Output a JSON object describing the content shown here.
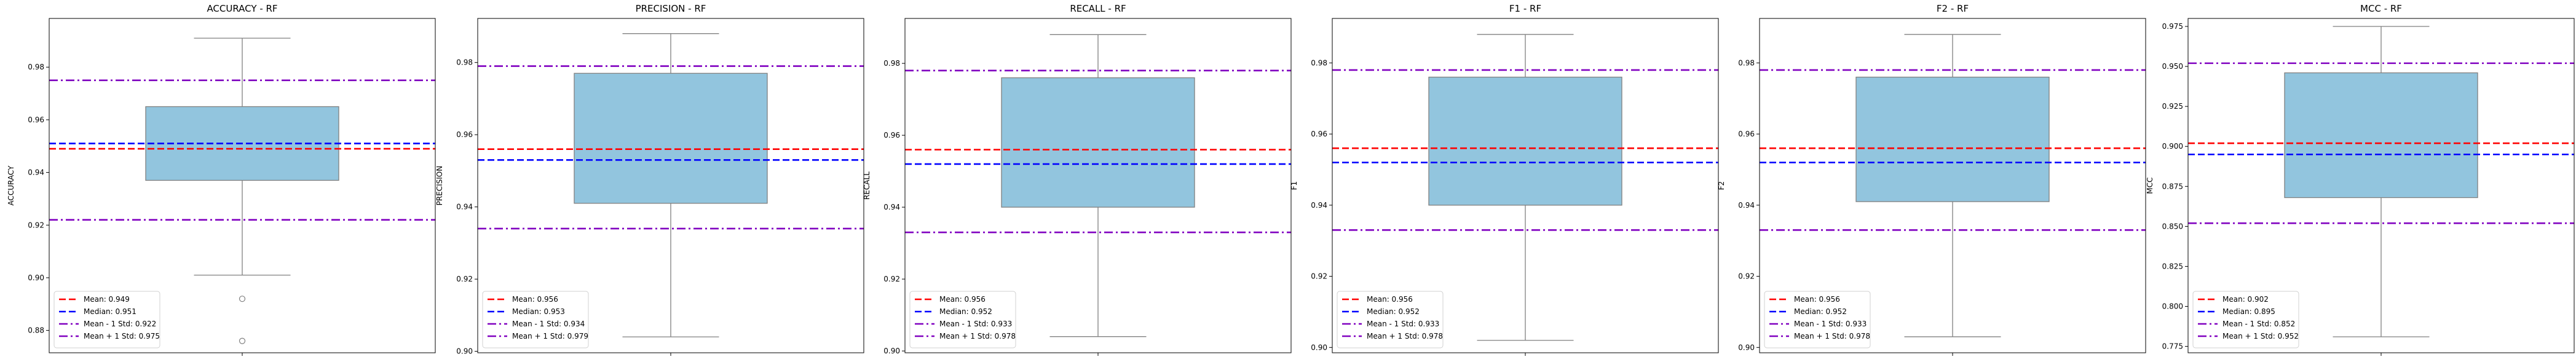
{
  "figure": {
    "background": "#ffffff"
  },
  "styles": {
    "box_fill": "#92c5de",
    "box_edge": "#808080",
    "mean_color": "#ff0000",
    "median_color": "#0000ff",
    "std_color": "#8000c0",
    "outlier_edge": "#808080"
  },
  "chart_data": [
    {
      "type": "box",
      "title": "ACCURACY - RF",
      "ylabel": "ACCURACY",
      "ylim": [
        0.8715,
        0.9985
      ],
      "yticks": [
        0.88,
        0.9,
        0.92,
        0.94,
        0.96,
        0.98
      ],
      "ytick_labels": [
        "0.88",
        "0.90",
        "0.92",
        "0.94",
        "0.96",
        "0.98"
      ],
      "box": {
        "q1": 0.937,
        "q3": 0.965,
        "whisker_low": 0.901,
        "whisker_high": 0.991,
        "outliers": [
          0.892,
          0.876
        ]
      },
      "mean": 0.949,
      "median": 0.951,
      "mean_minus_std": 0.922,
      "mean_plus_std": 0.975,
      "legend": [
        "Mean: 0.949",
        "Median: 0.951",
        "Mean - 1 Std: 0.922",
        "Mean + 1 Std: 0.975"
      ]
    },
    {
      "type": "box",
      "title": "PRECISION - RF",
      "ylabel": "PRECISION",
      "ylim": [
        0.8996,
        0.9922
      ],
      "yticks": [
        0.9,
        0.92,
        0.94,
        0.96,
        0.98
      ],
      "ytick_labels": [
        "0.90",
        "0.92",
        "0.94",
        "0.96",
        "0.98"
      ],
      "box": {
        "q1": 0.941,
        "q3": 0.977,
        "whisker_low": 0.904,
        "whisker_high": 0.988,
        "outliers": []
      },
      "mean": 0.956,
      "median": 0.953,
      "mean_minus_std": 0.934,
      "mean_plus_std": 0.979,
      "legend": [
        "Mean: 0.956",
        "Median: 0.953",
        "Mean - 1 Std: 0.934",
        "Mean + 1 Std: 0.979"
      ]
    },
    {
      "type": "box",
      "title": "RECALL - RF",
      "ylabel": "RECALL",
      "ylim": [
        0.8995,
        0.9925
      ],
      "yticks": [
        0.9,
        0.92,
        0.94,
        0.96,
        0.98
      ],
      "ytick_labels": [
        "0.90",
        "0.92",
        "0.94",
        "0.96",
        "0.98"
      ],
      "box": {
        "q1": 0.94,
        "q3": 0.976,
        "whisker_low": 0.904,
        "whisker_high": 0.988,
        "outliers": []
      },
      "mean": 0.956,
      "median": 0.952,
      "mean_minus_std": 0.933,
      "mean_plus_std": 0.978,
      "legend": [
        "Mean: 0.956",
        "Median: 0.952",
        "Mean - 1 Std: 0.933",
        "Mean + 1 Std: 0.978"
      ]
    },
    {
      "type": "box",
      "title": "F1 - RF",
      "ylabel": "F1",
      "ylim": [
        0.8985,
        0.9925
      ],
      "yticks": [
        0.9,
        0.92,
        0.94,
        0.96,
        0.98
      ],
      "ytick_labels": [
        "0.90",
        "0.92",
        "0.94",
        "0.96",
        "0.98"
      ],
      "box": {
        "q1": 0.94,
        "q3": 0.976,
        "whisker_low": 0.902,
        "whisker_high": 0.988,
        "outliers": []
      },
      "mean": 0.956,
      "median": 0.952,
      "mean_minus_std": 0.933,
      "mean_plus_std": 0.978,
      "legend": [
        "Mean: 0.956",
        "Median: 0.952",
        "Mean - 1 Std: 0.933",
        "Mean + 1 Std: 0.978"
      ]
    },
    {
      "type": "box",
      "title": "F2 - RF",
      "ylabel": "F2",
      "ylim": [
        0.8985,
        0.9925
      ],
      "yticks": [
        0.9,
        0.92,
        0.94,
        0.96,
        0.98
      ],
      "ytick_labels": [
        "0.90",
        "0.92",
        "0.94",
        "0.96",
        "0.98"
      ],
      "box": {
        "q1": 0.941,
        "q3": 0.976,
        "whisker_low": 0.903,
        "whisker_high": 0.988,
        "outliers": []
      },
      "mean": 0.956,
      "median": 0.952,
      "mean_minus_std": 0.933,
      "mean_plus_std": 0.978,
      "legend": [
        "Mean: 0.956",
        "Median: 0.952",
        "Mean - 1 Std: 0.933",
        "Mean + 1 Std: 0.978"
      ]
    },
    {
      "type": "box",
      "title": "MCC - RF",
      "ylabel": "MCC",
      "ylim": [
        0.771,
        0.98
      ],
      "yticks": [
        0.775,
        0.8,
        0.825,
        0.85,
        0.875,
        0.9,
        0.925,
        0.95,
        0.975
      ],
      "ytick_labels": [
        "0.775",
        "0.800",
        "0.825",
        "0.850",
        "0.875",
        "0.900",
        "0.925",
        "0.950",
        "0.975"
      ],
      "box": {
        "q1": 0.868,
        "q3": 0.946,
        "whisker_low": 0.781,
        "whisker_high": 0.975,
        "outliers": []
      },
      "mean": 0.902,
      "median": 0.895,
      "mean_minus_std": 0.852,
      "mean_plus_std": 0.952,
      "legend": [
        "Mean: 0.902",
        "Median: 0.895",
        "Mean - 1 Std: 0.852",
        "Mean + 1 Std: 0.952"
      ]
    }
  ]
}
